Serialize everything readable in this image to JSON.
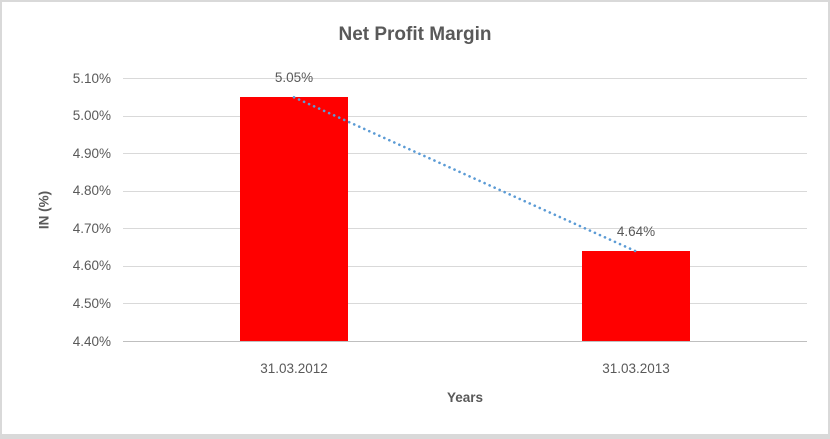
{
  "chart_data": {
    "type": "bar",
    "title": "Net Profit Margin",
    "xlabel": "Years",
    "ylabel": "IN (%)",
    "categories": [
      "31.03.2012",
      "31.03.2013"
    ],
    "values": [
      5.05,
      4.64
    ],
    "data_labels": [
      "5.05%",
      "4.64%"
    ],
    "ylim": [
      4.4,
      5.1
    ],
    "yticks": [
      {
        "value": 5.1,
        "label": "5.10%"
      },
      {
        "value": 5.0,
        "label": "5.00%"
      },
      {
        "value": 4.9,
        "label": "4.90%"
      },
      {
        "value": 4.8,
        "label": "4.80%"
      },
      {
        "value": 4.7,
        "label": "4.70%"
      },
      {
        "value": 4.6,
        "label": "4.60%"
      },
      {
        "value": 4.5,
        "label": "4.50%"
      },
      {
        "value": 4.4,
        "label": "4.40%"
      }
    ],
    "grid": true,
    "legend": false,
    "trendline": {
      "type": "linear",
      "style": "dotted"
    },
    "colors": {
      "bar": "#FF0000",
      "trendline": "#5B9BD5",
      "gridline": "#D9D9D9",
      "axis_line": "#BFBFBF",
      "text": "#595959",
      "frame_border": "#D9D9D9",
      "background": "#FFFFFF"
    }
  }
}
